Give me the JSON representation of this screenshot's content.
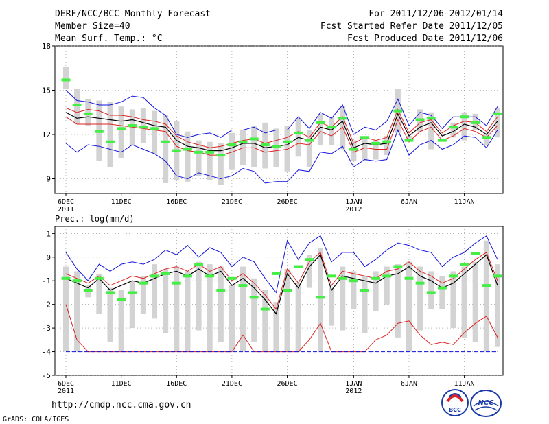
{
  "header": {
    "title": "DERF/NCC/BCC Monthly Forecast",
    "member_size": "Member Size=40",
    "variable": "Mean Surf. Temp.: °C",
    "period": "For 2011/12/06-2012/01/14",
    "started": "Fcst Started Refer Date 2011/12/05",
    "produced": "Fcst Produced Date 2011/12/06"
  },
  "footer": {
    "url": "http://cmdp.ncc.cma.gov.cn",
    "grads": "GrADS: COLA/IGES",
    "logo_bcc": "BCC",
    "logo_ncc": "NCC"
  },
  "colors": {
    "box": "#d3d3d3",
    "median": "#44ee44",
    "mean": "#000000",
    "band_inner": "#dd2222",
    "band_outer": "#1111dd"
  },
  "chart_data": [
    {
      "type": "line",
      "title": "Mean Surf. Temp.: °C",
      "ylim": [
        8,
        18
      ],
      "yticks": [
        9,
        12,
        15,
        18
      ],
      "ytick_labels": [
        "9",
        "12",
        "15",
        "18"
      ],
      "xlim": [
        0,
        39
      ],
      "xticks": [
        {
          "x": 0,
          "label": "6DEC",
          "sub": "2011"
        },
        {
          "x": 5,
          "label": "11DEC",
          "sub": ""
        },
        {
          "x": 10,
          "label": "16DEC",
          "sub": ""
        },
        {
          "x": 15,
          "label": "21DEC",
          "sub": ""
        },
        {
          "x": 20,
          "label": "26DEC",
          "sub": ""
        },
        {
          "x": 26,
          "label": "1JAN",
          "sub": "2012"
        },
        {
          "x": 31,
          "label": "6JAN",
          "sub": ""
        },
        {
          "x": 36,
          "label": "11JAN",
          "sub": ""
        }
      ],
      "series": [
        {
          "name": "ensemble mean",
          "values": [
            13.5,
            13.1,
            13.2,
            13.1,
            13.0,
            12.9,
            13.0,
            12.8,
            12.6,
            12.5,
            11.6,
            11.2,
            11.1,
            10.9,
            10.9,
            11.1,
            11.4,
            11.4,
            11.1,
            11.2,
            11.3,
            11.8,
            11.6,
            12.5,
            12.3,
            12.9,
            11.1,
            11.4,
            11.3,
            11.4,
            13.4,
            11.9,
            12.5,
            12.8,
            11.9,
            12.2,
            12.7,
            12.5,
            12.0,
            12.9
          ]
        },
        {
          "name": "upper inner",
          "values": [
            13.8,
            13.5,
            13.7,
            13.6,
            13.3,
            13.3,
            13.2,
            13.0,
            12.9,
            12.7,
            11.9,
            11.5,
            11.3,
            11.1,
            11.2,
            11.4,
            11.6,
            11.7,
            11.4,
            11.6,
            11.8,
            12.2,
            11.8,
            12.8,
            12.5,
            13.2,
            11.4,
            11.8,
            11.6,
            11.8,
            13.7,
            12.1,
            12.8,
            13.0,
            12.1,
            12.6,
            12.9,
            12.8,
            12.2,
            13.2
          ]
        },
        {
          "name": "lower inner",
          "values": [
            13.2,
            12.7,
            12.7,
            12.7,
            12.7,
            12.6,
            12.5,
            12.4,
            12.3,
            12.2,
            11.2,
            10.9,
            10.8,
            10.6,
            10.6,
            10.8,
            11.1,
            11.1,
            10.8,
            10.9,
            11.0,
            11.4,
            11.3,
            12.2,
            11.9,
            12.5,
            10.8,
            11.1,
            11.0,
            11.0,
            13.0,
            11.5,
            12.2,
            12.5,
            11.6,
            11.9,
            12.4,
            12.2,
            11.8,
            12.6
          ]
        },
        {
          "name": "upper outer",
          "values": [
            15.0,
            14.3,
            14.2,
            14.0,
            14.0,
            14.2,
            14.6,
            14.5,
            13.8,
            13.3,
            12.0,
            11.8,
            12.0,
            12.1,
            11.8,
            12.3,
            12.3,
            12.5,
            12.1,
            12.3,
            12.3,
            13.2,
            12.4,
            13.5,
            13.1,
            14.0,
            12.0,
            12.5,
            12.3,
            12.9,
            14.4,
            12.6,
            13.5,
            13.3,
            12.4,
            13.2,
            13.2,
            13.2,
            12.6,
            13.9
          ]
        },
        {
          "name": "lower outer",
          "values": [
            11.4,
            10.8,
            11.3,
            11.2,
            11.0,
            10.8,
            11.3,
            11.0,
            10.7,
            10.2,
            9.2,
            9.0,
            9.4,
            9.2,
            9.0,
            9.2,
            9.7,
            9.5,
            8.7,
            8.8,
            8.8,
            9.6,
            9.5,
            10.8,
            10.7,
            11.2,
            9.8,
            10.3,
            10.2,
            10.3,
            12.3,
            10.6,
            11.3,
            11.6,
            11.0,
            11.3,
            11.9,
            11.8,
            11.1,
            12.3
          ]
        }
      ],
      "boxes": {
        "low": [
          15.1,
          12.7,
          12.6,
          10.2,
          9.8,
          10.4,
          11.3,
          11.4,
          10.7,
          8.7,
          8.9,
          8.8,
          9.2,
          8.9,
          8.6,
          9.6,
          9.9,
          9.8,
          9.7,
          9.8,
          9.5,
          10.5,
          9.8,
          11.3,
          11.3,
          11.0,
          10.2,
          10.2,
          10.3,
          10.6,
          12.1,
          11.7,
          12.2,
          11.0,
          11.8,
          11.8,
          11.6,
          12.3,
          11.3,
          11.8
        ],
        "high": [
          16.6,
          15.1,
          14.4,
          14.3,
          14.2,
          13.9,
          13.7,
          13.8,
          13.6,
          13.3,
          12.9,
          12.2,
          11.6,
          11.5,
          11.4,
          12.1,
          12.3,
          12.6,
          12.8,
          12.4,
          12.6,
          13.1,
          12.3,
          13.4,
          13.2,
          13.9,
          11.6,
          11.8,
          11.6,
          11.9,
          15.1,
          11.9,
          13.7,
          13.5,
          11.8,
          12.8,
          13.5,
          13.4,
          12.1,
          13.8
        ],
        "median": [
          15.7,
          14.0,
          13.4,
          12.2,
          11.5,
          12.4,
          12.6,
          12.5,
          12.4,
          11.5,
          10.9,
          11.0,
          10.8,
          10.8,
          10.6,
          11.3,
          11.5,
          11.7,
          11.3,
          11.2,
          11.5,
          12.1,
          11.6,
          12.8,
          12.5,
          13.1,
          11.0,
          11.8,
          11.4,
          11.5,
          13.6,
          11.6,
          13.0,
          13.1,
          11.6,
          12.5,
          13.2,
          12.8,
          11.8,
          13.4
        ]
      }
    },
    {
      "type": "line",
      "title": "Prec.: log(mm/d)",
      "ylim": [
        -5,
        1.3
      ],
      "yticks": [
        -5,
        -4,
        -3,
        -2,
        -1,
        0,
        1
      ],
      "ytick_labels": [
        "-5",
        "-4",
        "-3",
        "-2",
        "-1",
        "0",
        "1"
      ],
      "xlim": [
        0,
        39
      ],
      "xticks": [
        {
          "x": 0,
          "label": "6DEC",
          "sub": "2011"
        },
        {
          "x": 5,
          "label": "11DEC",
          "sub": ""
        },
        {
          "x": 10,
          "label": "16DEC",
          "sub": ""
        },
        {
          "x": 15,
          "label": "21DEC",
          "sub": ""
        },
        {
          "x": 20,
          "label": "26DEC",
          "sub": ""
        },
        {
          "x": 26,
          "label": "1JAN",
          "sub": "2012"
        },
        {
          "x": 31,
          "label": "6JAN",
          "sub": ""
        },
        {
          "x": 36,
          "label": "11JAN",
          "sub": ""
        }
      ],
      "series": [
        {
          "name": "ensemble mean",
          "values": [
            -0.9,
            -1.1,
            -1.3,
            -0.9,
            -1.4,
            -1.2,
            -1.0,
            -1.1,
            -0.9,
            -0.7,
            -0.6,
            -0.8,
            -0.5,
            -0.8,
            -0.6,
            -1.2,
            -0.9,
            -1.3,
            -1.8,
            -2.4,
            -0.7,
            -1.3,
            -0.4,
            0.1,
            -1.4,
            -0.8,
            -0.9,
            -1.0,
            -1.1,
            -0.8,
            -0.7,
            -0.4,
            -0.8,
            -1.0,
            -1.3,
            -1.1,
            -0.7,
            -0.3,
            0.1,
            -1.2
          ]
        },
        {
          "name": "upper inner",
          "values": [
            -0.7,
            -0.9,
            -1.1,
            -0.8,
            -1.2,
            -1.0,
            -0.8,
            -0.9,
            -0.7,
            -0.5,
            -0.4,
            -0.6,
            -0.3,
            -0.6,
            -0.4,
            -1.0,
            -0.7,
            -1.1,
            -1.6,
            -2.2,
            -0.5,
            -1.1,
            -0.2,
            0.2,
            -1.2,
            -0.6,
            -0.7,
            -0.8,
            -0.9,
            -0.6,
            -0.5,
            -0.2,
            -0.6,
            -0.8,
            -1.1,
            -0.9,
            -0.5,
            -0.1,
            0.2,
            -1.0
          ]
        },
        {
          "name": "lower inner",
          "values": [
            -2.0,
            -3.5,
            -4.0,
            -4.0,
            -4.0,
            -4.0,
            -4.0,
            -4.0,
            -4.0,
            -4.0,
            -4.0,
            -4.0,
            -4.0,
            -4.0,
            -4.0,
            -4.0,
            -3.3,
            -4.0,
            -4.0,
            -4.0,
            -4.0,
            -4.0,
            -3.5,
            -2.8,
            -4.0,
            -4.0,
            -4.0,
            -4.0,
            -3.5,
            -3.3,
            -2.8,
            -2.7,
            -3.3,
            -3.7,
            -3.6,
            -3.7,
            -3.2,
            -2.8,
            -2.5,
            -3.4
          ]
        },
        {
          "name": "upper outer",
          "values": [
            0.2,
            -0.5,
            -1.0,
            -0.3,
            -0.6,
            -0.3,
            -0.2,
            -0.3,
            -0.1,
            0.3,
            0.1,
            0.5,
            0.0,
            0.4,
            0.2,
            -0.4,
            0.0,
            -0.2,
            -0.9,
            -1.5,
            0.7,
            -0.1,
            0.6,
            0.9,
            -0.2,
            0.2,
            0.2,
            -0.4,
            -0.1,
            0.3,
            0.6,
            0.5,
            0.3,
            0.2,
            -0.4,
            0.0,
            0.2,
            0.6,
            0.9,
            -0.1
          ]
        },
        {
          "name": "lower outer",
          "values": [
            -4.0,
            -4.0,
            -4.0,
            -4.0,
            -4.0,
            -4.0,
            -4.0,
            -4.0,
            -4.0,
            -4.0,
            -4.0,
            -4.0,
            -4.0,
            -4.0,
            -4.0,
            -4.0,
            -4.0,
            -4.0,
            -4.0,
            -4.0,
            -4.0,
            -4.0,
            -4.0,
            -4.0,
            -4.0,
            -4.0,
            -4.0,
            -4.0,
            -4.0,
            -4.0,
            -4.0,
            -4.0,
            -4.0,
            -4.0,
            -4.0,
            -4.0,
            -4.0,
            -4.0,
            -4.0,
            -4.0
          ]
        }
      ],
      "boxes": {
        "low": [
          -4.0,
          -4.0,
          -1.7,
          -2.4,
          -3.6,
          -4.0,
          -3.0,
          -2.4,
          -2.6,
          -3.2,
          -4.0,
          -4.0,
          -3.1,
          -4.0,
          -3.6,
          -4.0,
          -4.0,
          -3.6,
          -4.0,
          -4.0,
          -4.0,
          -4.0,
          -1.3,
          -4.0,
          -2.9,
          -3.1,
          -2.2,
          -3.2,
          -2.3,
          -2.0,
          -3.4,
          -4.0,
          -3.1,
          -2.2,
          -2.2,
          -3.0,
          -3.4,
          -3.6,
          -4.0,
          -3.8
        ],
        "high": [
          -0.4,
          -0.6,
          -1.2,
          -0.7,
          -1.3,
          -1.4,
          -1.0,
          -0.8,
          -0.3,
          -0.5,
          -0.4,
          -0.6,
          -0.2,
          -0.3,
          -0.4,
          -1.2,
          -0.4,
          -0.9,
          -1.4,
          -1.9,
          -0.5,
          -1.1,
          0.1,
          0.4,
          -1.3,
          -0.4,
          -0.6,
          -0.8,
          -0.6,
          -0.4,
          -0.3,
          -0.2,
          -0.4,
          -0.6,
          -0.8,
          -0.6,
          -0.4,
          -0.2,
          0.7,
          -0.3
        ],
        "median": [
          -0.9,
          -1.0,
          -1.4,
          -0.9,
          -1.5,
          -1.8,
          -1.5,
          -1.1,
          -0.8,
          -0.7,
          -1.1,
          -0.8,
          -0.3,
          -0.8,
          -1.4,
          -0.9,
          -1.2,
          -1.7,
          -2.2,
          -0.7,
          -1.4,
          -0.4,
          -0.1,
          -1.7,
          -0.8,
          -0.9,
          -1.0,
          -1.4,
          -0.9,
          -0.8,
          -0.4,
          -0.9,
          -1.1,
          -1.5,
          -1.3,
          -0.8,
          -0.3,
          0.15,
          -1.2,
          -0.8
        ]
      }
    }
  ]
}
